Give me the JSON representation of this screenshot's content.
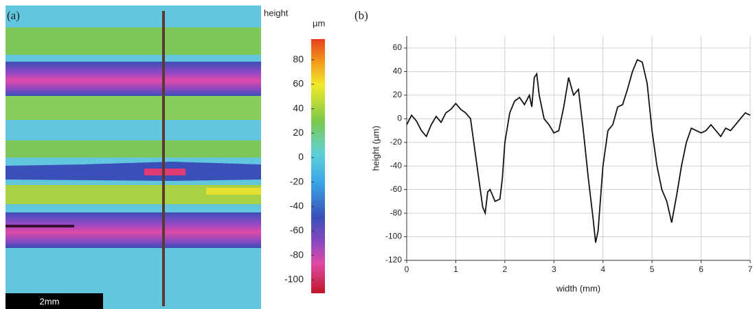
{
  "chart_data": [
    {
      "type": "image",
      "panel_label": "(a)",
      "colorbar_title": "height",
      "colorbar_unit": "µm",
      "clim": [
        -111,
        97
      ],
      "cticks": [
        80,
        60,
        40,
        20,
        0,
        -20,
        -40,
        -60,
        -80,
        -100
      ],
      "scale_bar_label": "2mm"
    },
    {
      "type": "line",
      "panel_label": "(b)",
      "xlabel": "width (mm)",
      "ylabel": "height (µm)",
      "xlim": [
        0,
        7
      ],
      "ylim": [
        -120,
        70
      ],
      "xticks": [
        0,
        1,
        2,
        3,
        4,
        5,
        6,
        7
      ],
      "yticks": [
        -120,
        -100,
        -80,
        -60,
        -40,
        -20,
        0,
        20,
        40,
        60
      ],
      "grid": true,
      "color": "#111111",
      "x": [
        0,
        0.1,
        0.2,
        0.3,
        0.4,
        0.5,
        0.6,
        0.7,
        0.8,
        0.9,
        1.0,
        1.1,
        1.2,
        1.3,
        1.4,
        1.5,
        1.55,
        1.6,
        1.65,
        1.7,
        1.8,
        1.9,
        1.95,
        2.0,
        2.1,
        2.2,
        2.3,
        2.4,
        2.5,
        2.55,
        2.6,
        2.65,
        2.7,
        2.8,
        2.9,
        3.0,
        3.1,
        3.2,
        3.3,
        3.4,
        3.5,
        3.6,
        3.7,
        3.8,
        3.85,
        3.9,
        4.0,
        4.1,
        4.2,
        4.3,
        4.4,
        4.5,
        4.6,
        4.7,
        4.8,
        4.9,
        5.0,
        5.1,
        5.2,
        5.3,
        5.4,
        5.5,
        5.6,
        5.7,
        5.8,
        5.9,
        6.0,
        6.1,
        6.2,
        6.3,
        6.4,
        6.5,
        6.6,
        6.7,
        6.8,
        6.9,
        7.0
      ],
      "values": [
        -5,
        3,
        -2,
        -10,
        -15,
        -5,
        2,
        -3,
        5,
        8,
        13,
        8,
        5,
        0,
        -30,
        -60,
        -75,
        -80,
        -62,
        -60,
        -70,
        -68,
        -50,
        -20,
        5,
        15,
        18,
        12,
        20,
        10,
        35,
        38,
        20,
        0,
        -5,
        -12,
        -10,
        10,
        35,
        20,
        25,
        -10,
        -50,
        -85,
        -105,
        -95,
        -40,
        -10,
        -5,
        10,
        12,
        25,
        40,
        50,
        48,
        30,
        -10,
        -40,
        -60,
        -70,
        -88,
        -65,
        -40,
        -20,
        -8,
        -10,
        -12,
        -10,
        -5,
        -10,
        -15,
        -8,
        -10,
        -5,
        0,
        5,
        3
      ]
    }
  ]
}
